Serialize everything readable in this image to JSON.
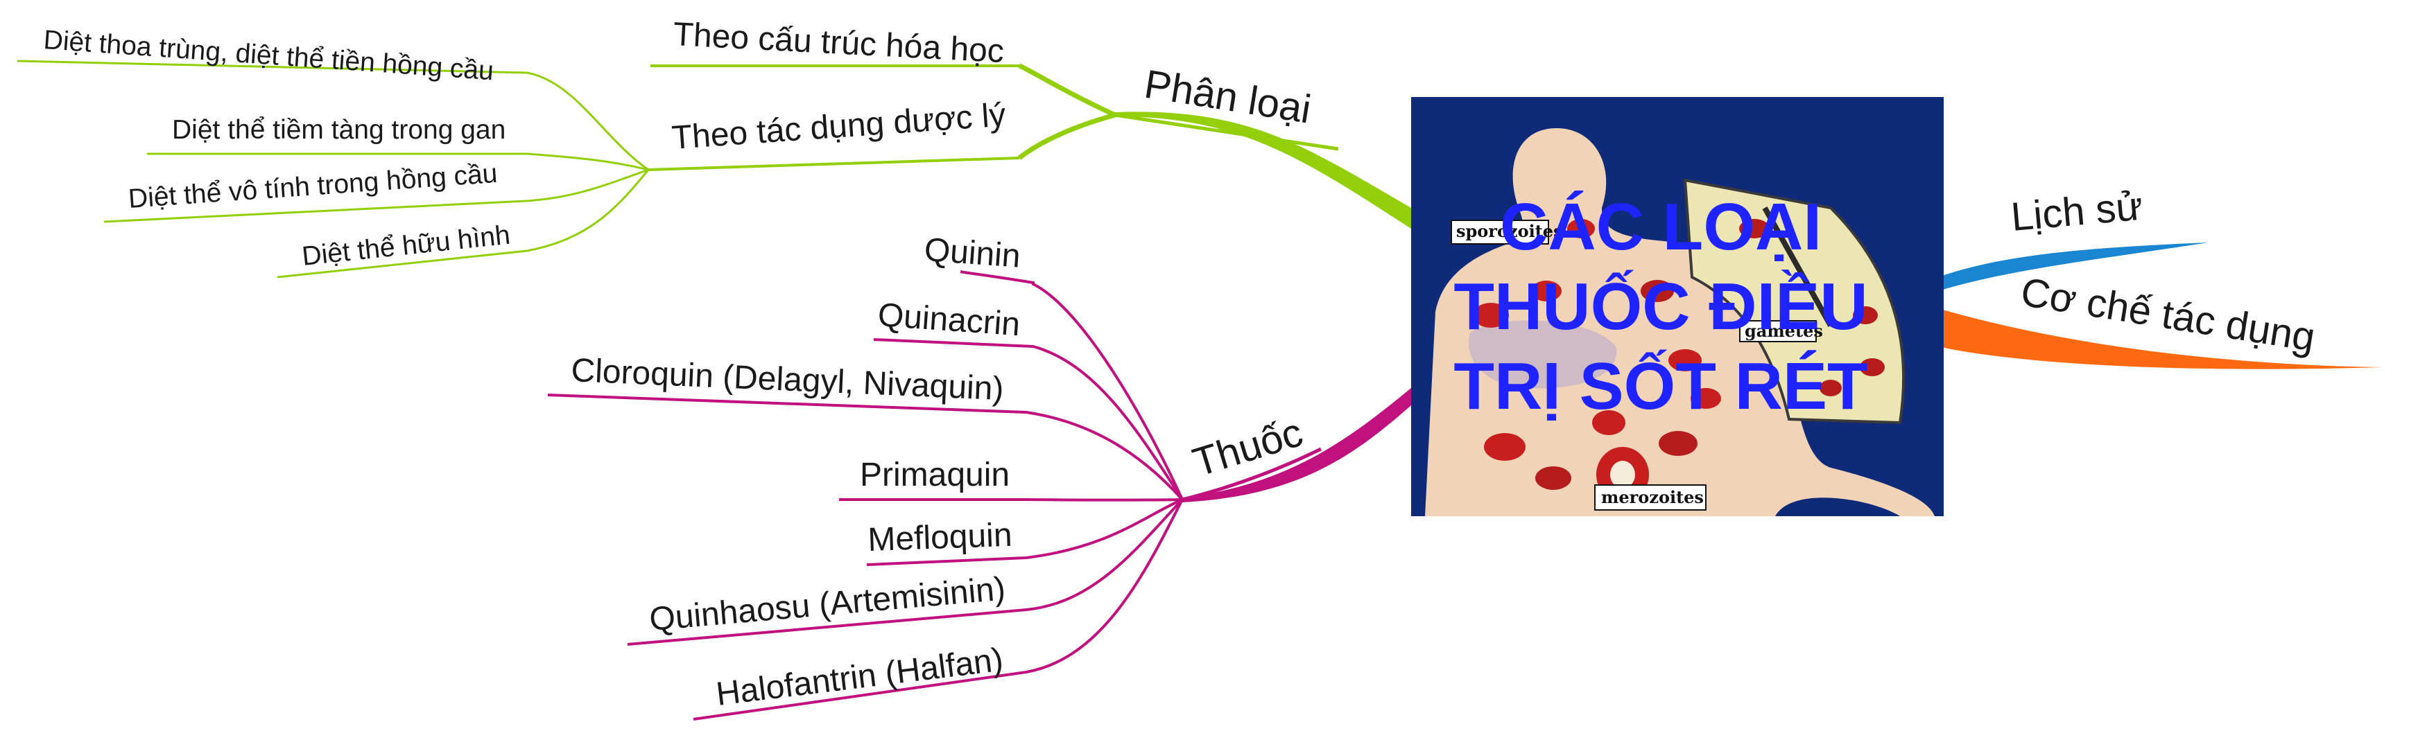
{
  "center": {
    "title_lines": [
      "CÁC LOẠI",
      "THUỐC ĐIỀU",
      "TRỊ SỐT RÉT"
    ],
    "image_labels": {
      "sporozoites": "sporozoites",
      "gametes": "gametes",
      "merozoites": "merozoites"
    }
  },
  "colors": {
    "green": "#93cf0b",
    "magenta": "#c0117e",
    "blue": "#1a86d2",
    "orange": "#ff6a10",
    "title": "#1f23ff",
    "image_bg": "#102a7a"
  },
  "branches": {
    "phan_loai": {
      "label": "Phân loại",
      "children": {
        "hoa_hoc": {
          "label": "Theo cấu trúc hóa học"
        },
        "duoc_ly": {
          "label": "Theo tác dụng dược lý",
          "children": [
            "Diệt thoa trùng, diệt thể tiền hồng cầu",
            "Diệt thể tiềm tàng trong gan",
            "Diệt thể vô tính trong hồng cầu",
            "Diệt thể hữu hình"
          ]
        }
      }
    },
    "thuoc": {
      "label": "Thuốc",
      "children": [
        "Quinin",
        "Quinacrin",
        "Cloroquin (Delagyl, Nivaquin)",
        "Primaquin",
        "Mefloquin",
        "Quinhaosu (Artemisinin)",
        "Halofantrin (Halfan)"
      ]
    },
    "lich_su": {
      "label": "Lịch sử"
    },
    "co_che": {
      "label": "Cơ chế tác dụng"
    }
  }
}
